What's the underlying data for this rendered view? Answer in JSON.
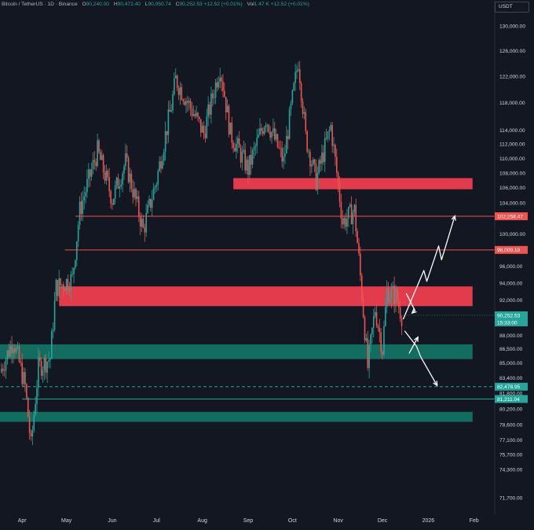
{
  "header": {
    "symbol": "Bitcoin / TetherUS · 1D · Binance",
    "o_label": "O",
    "o": "90,240.00",
    "h_label": "H",
    "h": "90,472.40",
    "l_label": "L",
    "l": "90,050.74",
    "c_label": "C",
    "c": "90,252.53",
    "change": "+12.52 (+0.01%)",
    "vol_label": "Vol",
    "vol": "1.47 K",
    "vol_change": "+12.52 (+0.01%)"
  },
  "currency_button": "USDT",
  "colors": {
    "background": "#131722",
    "up": "#26a69a",
    "down": "#ef5350",
    "resistance_zone": "#ec3d4f",
    "support_zone": "#137b6a",
    "text": "#d1d4dc"
  },
  "chart_data": {
    "type": "candlestick",
    "scale": "log",
    "ylim": [
      70500,
      133000
    ],
    "y_ticks": [
      {
        "value": 71700,
        "label": "71,700.00"
      },
      {
        "value": 74300,
        "label": "74,300.00"
      },
      {
        "value": 75700,
        "label": "75,700.00"
      },
      {
        "value": 77100,
        "label": "77,100.00"
      },
      {
        "value": 78600,
        "label": "78,600.00"
      },
      {
        "value": 80200,
        "label": "80,200.00"
      },
      {
        "value": 83400,
        "label": "83,400.00"
      },
      {
        "value": 85000,
        "label": "85,000.00"
      },
      {
        "value": 86500,
        "label": "86,500.00"
      },
      {
        "value": 88000,
        "label": "88,000.00"
      },
      {
        "value": 92000,
        "label": "92,000.00"
      },
      {
        "value": 94000,
        "label": "94,000.00"
      },
      {
        "value": 96000,
        "label": "96,000.00"
      },
      {
        "value": 100000,
        "label": "100,000.00"
      },
      {
        "value": 104000,
        "label": "104,000.00"
      },
      {
        "value": 106000,
        "label": "106,000.00"
      },
      {
        "value": 108000,
        "label": "108,000.00"
      },
      {
        "value": 110000,
        "label": "110,000.00"
      },
      {
        "value": 112000,
        "label": "112,000.00"
      },
      {
        "value": 114000,
        "label": "114,000.00"
      },
      {
        "value": 118000,
        "label": "118,000.00"
      },
      {
        "value": 122000,
        "label": "122,000.00"
      },
      {
        "value": 126000,
        "label": "126,000.00"
      },
      {
        "value": 130000,
        "label": "130,000.00"
      }
    ],
    "x_ticks": [
      {
        "label": "Apr",
        "date": "2025-04-01"
      },
      {
        "label": "May",
        "date": "2025-05-01"
      },
      {
        "label": "Jun",
        "date": "2025-06-01"
      },
      {
        "label": "Jul",
        "date": "2025-07-01"
      },
      {
        "label": "Aug",
        "date": "2025-08-01"
      },
      {
        "label": "Sep",
        "date": "2025-09-01"
      },
      {
        "label": "Oct",
        "date": "2025-10-01"
      },
      {
        "label": "Nov",
        "date": "2025-11-01"
      },
      {
        "label": "Dec",
        "date": "2025-12-01"
      },
      {
        "label": "2026",
        "date": "2026-01-01"
      },
      {
        "label": "Feb",
        "date": "2026-02-01"
      }
    ],
    "x_range": [
      "2025-03-17",
      "2026-02-15"
    ],
    "price_path": [
      {
        "date": "2025-03-17",
        "close": 84000
      },
      {
        "date": "2025-03-26",
        "close": 87500
      },
      {
        "date": "2025-04-03",
        "close": 82500
      },
      {
        "date": "2025-04-07",
        "close": 76500
      },
      {
        "date": "2025-04-12",
        "close": 84500
      },
      {
        "date": "2025-04-20",
        "close": 85500
      },
      {
        "date": "2025-04-24",
        "close": 93500
      },
      {
        "date": "2025-05-05",
        "close": 94500
      },
      {
        "date": "2025-05-10",
        "close": 103000
      },
      {
        "date": "2025-05-22",
        "close": 111000
      },
      {
        "date": "2025-06-01",
        "close": 104500
      },
      {
        "date": "2025-06-10",
        "close": 109500
      },
      {
        "date": "2025-06-22",
        "close": 100500
      },
      {
        "date": "2025-07-01",
        "close": 107000
      },
      {
        "date": "2025-07-11",
        "close": 117500
      },
      {
        "date": "2025-07-14",
        "close": 121500
      },
      {
        "date": "2025-08-02",
        "close": 113500
      },
      {
        "date": "2025-08-13",
        "close": 123500
      },
      {
        "date": "2025-08-20",
        "close": 113500
      },
      {
        "date": "2025-09-01",
        "close": 108500
      },
      {
        "date": "2025-09-13",
        "close": 115800
      },
      {
        "date": "2025-09-25",
        "close": 109500
      },
      {
        "date": "2025-10-05",
        "close": 124500
      },
      {
        "date": "2025-10-10",
        "close": 113000
      },
      {
        "date": "2025-10-17",
        "close": 107000
      },
      {
        "date": "2025-10-27",
        "close": 114500
      },
      {
        "date": "2025-11-04",
        "close": 101500
      },
      {
        "date": "2025-11-12",
        "close": 103000
      },
      {
        "date": "2025-11-21",
        "close": 84500
      },
      {
        "date": "2025-11-26",
        "close": 91000
      },
      {
        "date": "2025-12-01",
        "close": 86500
      },
      {
        "date": "2025-12-04",
        "close": 93000
      },
      {
        "date": "2025-12-10",
        "close": 92500
      },
      {
        "date": "2025-12-14",
        "close": 90252.53
      }
    ],
    "zones": [
      {
        "kind": "resistance",
        "from": 105800,
        "to": 107300,
        "start": "2025-08-22",
        "end": "2026-01-31"
      },
      {
        "kind": "resistance",
        "from": 91300,
        "to": 93600,
        "start": "2025-04-26",
        "end": "2026-01-31"
      },
      {
        "kind": "support",
        "from": 85400,
        "to": 87000,
        "start": "2025-03-17",
        "end": "2026-01-31"
      },
      {
        "kind": "support",
        "from": 78900,
        "to": 79900,
        "start": "2025-03-17",
        "end": "2026-01-31"
      }
    ],
    "levels": [
      {
        "value": 102258.47,
        "label": "102,258.47",
        "style": "solid",
        "color": "#ef5350",
        "start": "2025-05-07"
      },
      {
        "value": 98009.19,
        "label": "98,009.19",
        "style": "solid",
        "color": "#ef5350",
        "start": "2025-04-30"
      },
      {
        "value": 82478.95,
        "label": "82,478.95",
        "style": "dashed",
        "color": "#26a69a",
        "start": "2025-03-17"
      },
      {
        "value": 81211.04,
        "label": "81,211.04",
        "style": "solid",
        "color": "#26a69a",
        "start": "2025-04-01"
      }
    ],
    "extra_labels": [
      {
        "value": 81800,
        "label": "81,800.00"
      }
    ],
    "current_price": {
      "value": 90252.53,
      "label": "90,252.53",
      "countdown": "15:33:00"
    },
    "scenario_arrows": [
      {
        "name": "bull-path",
        "points": [
          {
            "date": "2025-12-15",
            "price": 89800
          },
          {
            "date": "2025-12-29",
            "price": 95500
          },
          {
            "date": "2025-12-31",
            "price": 94200
          },
          {
            "date": "2026-01-08",
            "price": 98500
          },
          {
            "date": "2026-01-10",
            "price": 96800
          },
          {
            "date": "2026-01-19",
            "price": 102300
          }
        ]
      },
      {
        "name": "bull-fork",
        "points": [
          {
            "date": "2025-12-17",
            "price": 92800
          },
          {
            "date": "2025-12-23",
            "price": 90800
          },
          {
            "date": "2025-12-21",
            "price": 90500
          }
        ]
      },
      {
        "name": "bear-path",
        "points": [
          {
            "date": "2025-12-16",
            "price": 88500
          },
          {
            "date": "2025-12-24",
            "price": 86800
          },
          {
            "date": "2025-12-27",
            "price": 85600
          },
          {
            "date": "2026-01-07",
            "price": 82600
          }
        ]
      },
      {
        "name": "bear-fork",
        "points": [
          {
            "date": "2025-12-19",
            "price": 86000
          },
          {
            "date": "2025-12-25",
            "price": 87800
          }
        ]
      }
    ]
  }
}
